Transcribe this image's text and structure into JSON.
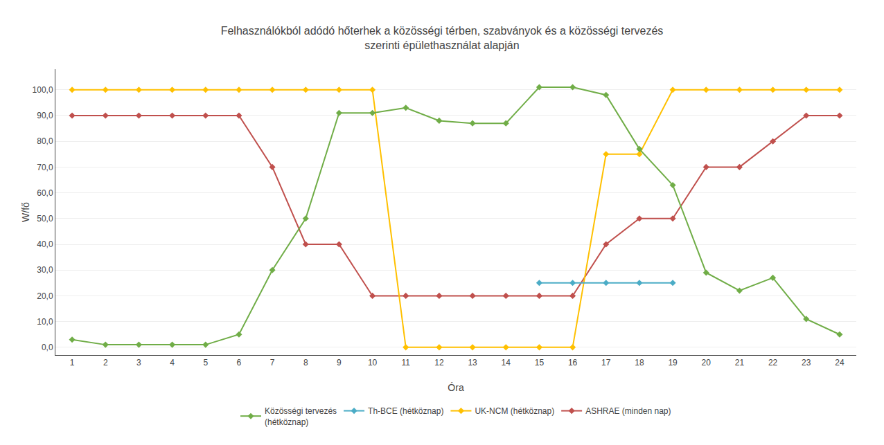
{
  "chart_data": {
    "type": "line",
    "title": "Felhasználókból adódó hőterhek a közösségi térben, szabványok és a közösségi tervezés\nszerinti épülethasználat alapján",
    "xlabel": "Óra",
    "ylabel": "W/fő",
    "xlim": [
      0.5,
      24.5
    ],
    "ylim": [
      -3,
      108
    ],
    "xticks": [
      1,
      2,
      3,
      4,
      5,
      6,
      7,
      8,
      9,
      10,
      11,
      12,
      13,
      14,
      15,
      16,
      17,
      18,
      19,
      20,
      21,
      22,
      23,
      24
    ],
    "yticks": [
      {
        "value": 0,
        "label": "0,0"
      },
      {
        "value": 10,
        "label": "10,0"
      },
      {
        "value": 20,
        "label": "20,0"
      },
      {
        "value": 30,
        "label": "30,0"
      },
      {
        "value": 40,
        "label": "40,0"
      },
      {
        "value": 50,
        "label": "50,0"
      },
      {
        "value": 60,
        "label": "60,0"
      },
      {
        "value": 70,
        "label": "70,0"
      },
      {
        "value": 80,
        "label": "80,0"
      },
      {
        "value": 90,
        "label": "90,0"
      },
      {
        "value": 100,
        "label": "100,0"
      }
    ],
    "grid": true,
    "legend": "bottom",
    "series": [
      {
        "name": "ASHRAE (minden nap)",
        "color": "#C0504D",
        "marker": "diamond",
        "x": [
          1,
          2,
          3,
          4,
          5,
          6,
          7,
          8,
          9,
          10,
          11,
          12,
          13,
          14,
          15,
          16,
          17,
          18,
          19,
          20,
          21,
          22,
          23,
          24
        ],
        "values": [
          90,
          90,
          90,
          90,
          90,
          90,
          70,
          40,
          40,
          20,
          20,
          20,
          20,
          20,
          20,
          20,
          40,
          50,
          50,
          70,
          70,
          80,
          90,
          90
        ]
      },
      {
        "name": "UK-NCM (hétköznap)",
        "color": "#FFC000",
        "marker": "diamond",
        "x": [
          1,
          2,
          3,
          4,
          5,
          6,
          7,
          8,
          9,
          10,
          11,
          12,
          13,
          14,
          15,
          16,
          17,
          18,
          19,
          20,
          21,
          22,
          23,
          24
        ],
        "values": [
          100,
          100,
          100,
          100,
          100,
          100,
          100,
          100,
          100,
          100,
          0,
          0,
          0,
          0,
          0,
          0,
          75,
          75,
          100,
          100,
          100,
          100,
          100,
          100
        ]
      },
      {
        "name": "Th-BCE (hétköznap)",
        "color": "#4BACC6",
        "marker": "diamond",
        "x": [
          15,
          16,
          17,
          18,
          19
        ],
        "values": [
          25,
          25,
          25,
          25,
          25
        ]
      },
      {
        "name": "Közösségi tervezés\n(hétköznap)",
        "color": "#70AD47",
        "marker": "diamond",
        "x": [
          1,
          2,
          3,
          4,
          5,
          6,
          7,
          8,
          9,
          10,
          11,
          12,
          13,
          14,
          15,
          16,
          17,
          18,
          19,
          20,
          21,
          22,
          23,
          24
        ],
        "values": [
          3,
          1,
          1,
          1,
          1,
          5,
          30,
          50,
          91,
          91,
          93,
          88,
          87,
          87,
          101,
          101,
          98,
          77,
          63,
          29,
          22,
          27,
          11,
          5
        ]
      }
    ]
  }
}
